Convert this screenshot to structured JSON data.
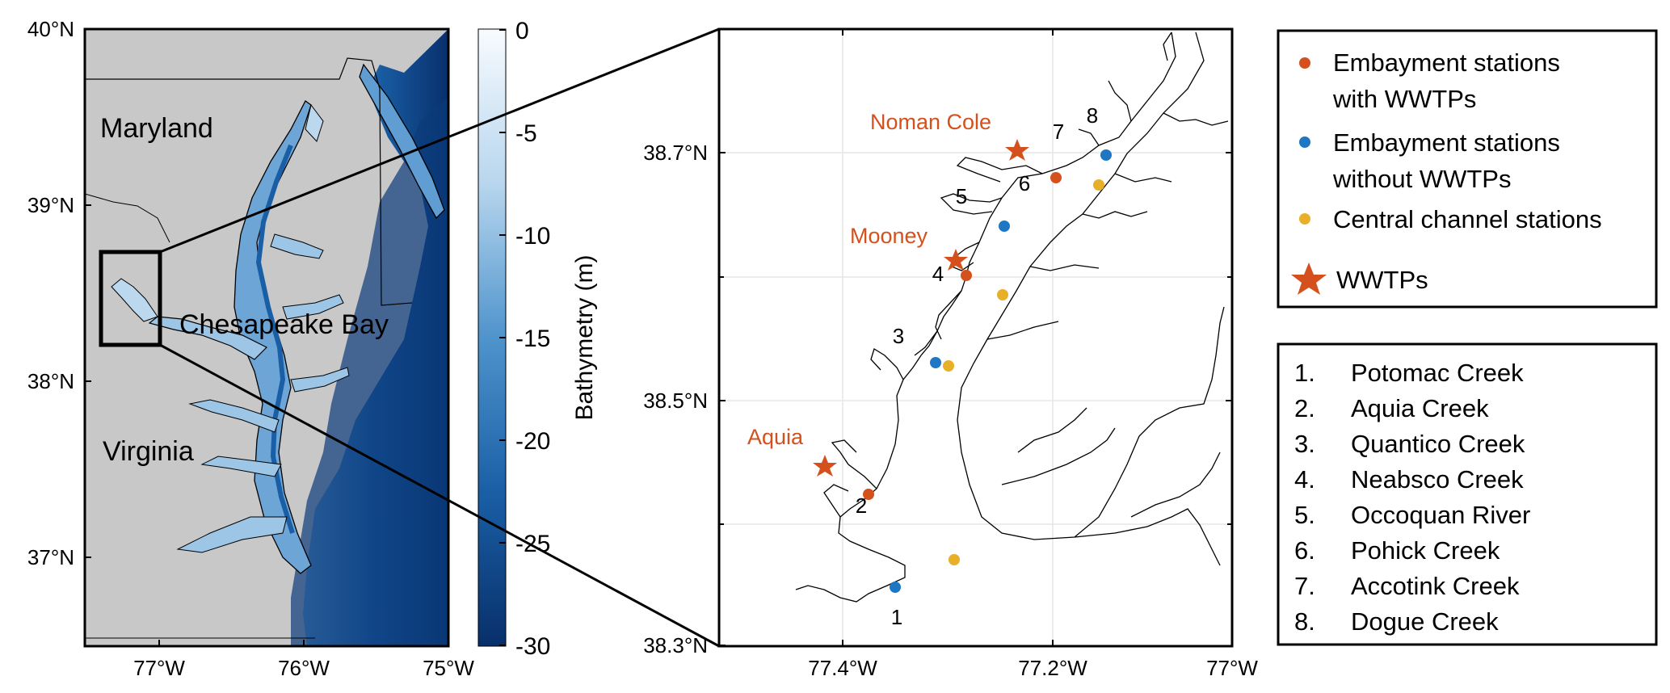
{
  "left_map": {
    "lat_ticks": [
      "40°N",
      "39°N",
      "38°N",
      "37°N"
    ],
    "lon_ticks": [
      "77°W",
      "76°W",
      "75°W"
    ],
    "places": {
      "maryland": "Maryland",
      "virginia": "Virginia",
      "bay": "Chesapeake Bay"
    },
    "land_color": "#c8c8c8",
    "water_color_shallow": "#e8f1fa",
    "water_color_deep": "#08306b"
  },
  "colorbar": {
    "label": "Bathymetry (m)",
    "ticks": [
      "0",
      "-5",
      "-10",
      "-15",
      "-20",
      "-25",
      "-30"
    ]
  },
  "right_map": {
    "lat_ticks": [
      "38.7°N",
      "38.5°N",
      "38.3°N"
    ],
    "lon_ticks": [
      "77.4°W",
      "77.2°W",
      "77°W"
    ],
    "wwtp_labels": {
      "noman_cole": "Noman Cole",
      "mooney": "Mooney",
      "aquia": "Aquia"
    },
    "station_numbers": [
      "1",
      "2",
      "3",
      "4",
      "5",
      "6",
      "7",
      "8"
    ],
    "colors": {
      "with_wwtp": "#d4501c",
      "without_wwtp": "#1f77c4",
      "central": "#e8b028",
      "star": "#d4501c"
    }
  },
  "legend": {
    "with_wwtp_line1": "Embayment stations",
    "with_wwtp_line2": "with WWTPs",
    "without_wwtp_line1": "Embayment stations",
    "without_wwtp_line2": "without WWTPs",
    "central": "Central channel stations",
    "wwtps": "WWTPs"
  },
  "station_list": [
    {
      "n": "1.",
      "name": "Potomac Creek"
    },
    {
      "n": "2.",
      "name": "Aquia Creek"
    },
    {
      "n": "3.",
      "name": "Quantico Creek"
    },
    {
      "n": "4.",
      "name": "Neabsco Creek"
    },
    {
      "n": "5.",
      "name": "Occoquan River"
    },
    {
      "n": "6.",
      "name": "Pohick Creek"
    },
    {
      "n": "7.",
      "name": "Accotink Creek"
    },
    {
      "n": "8.",
      "name": "Dogue Creek"
    }
  ]
}
